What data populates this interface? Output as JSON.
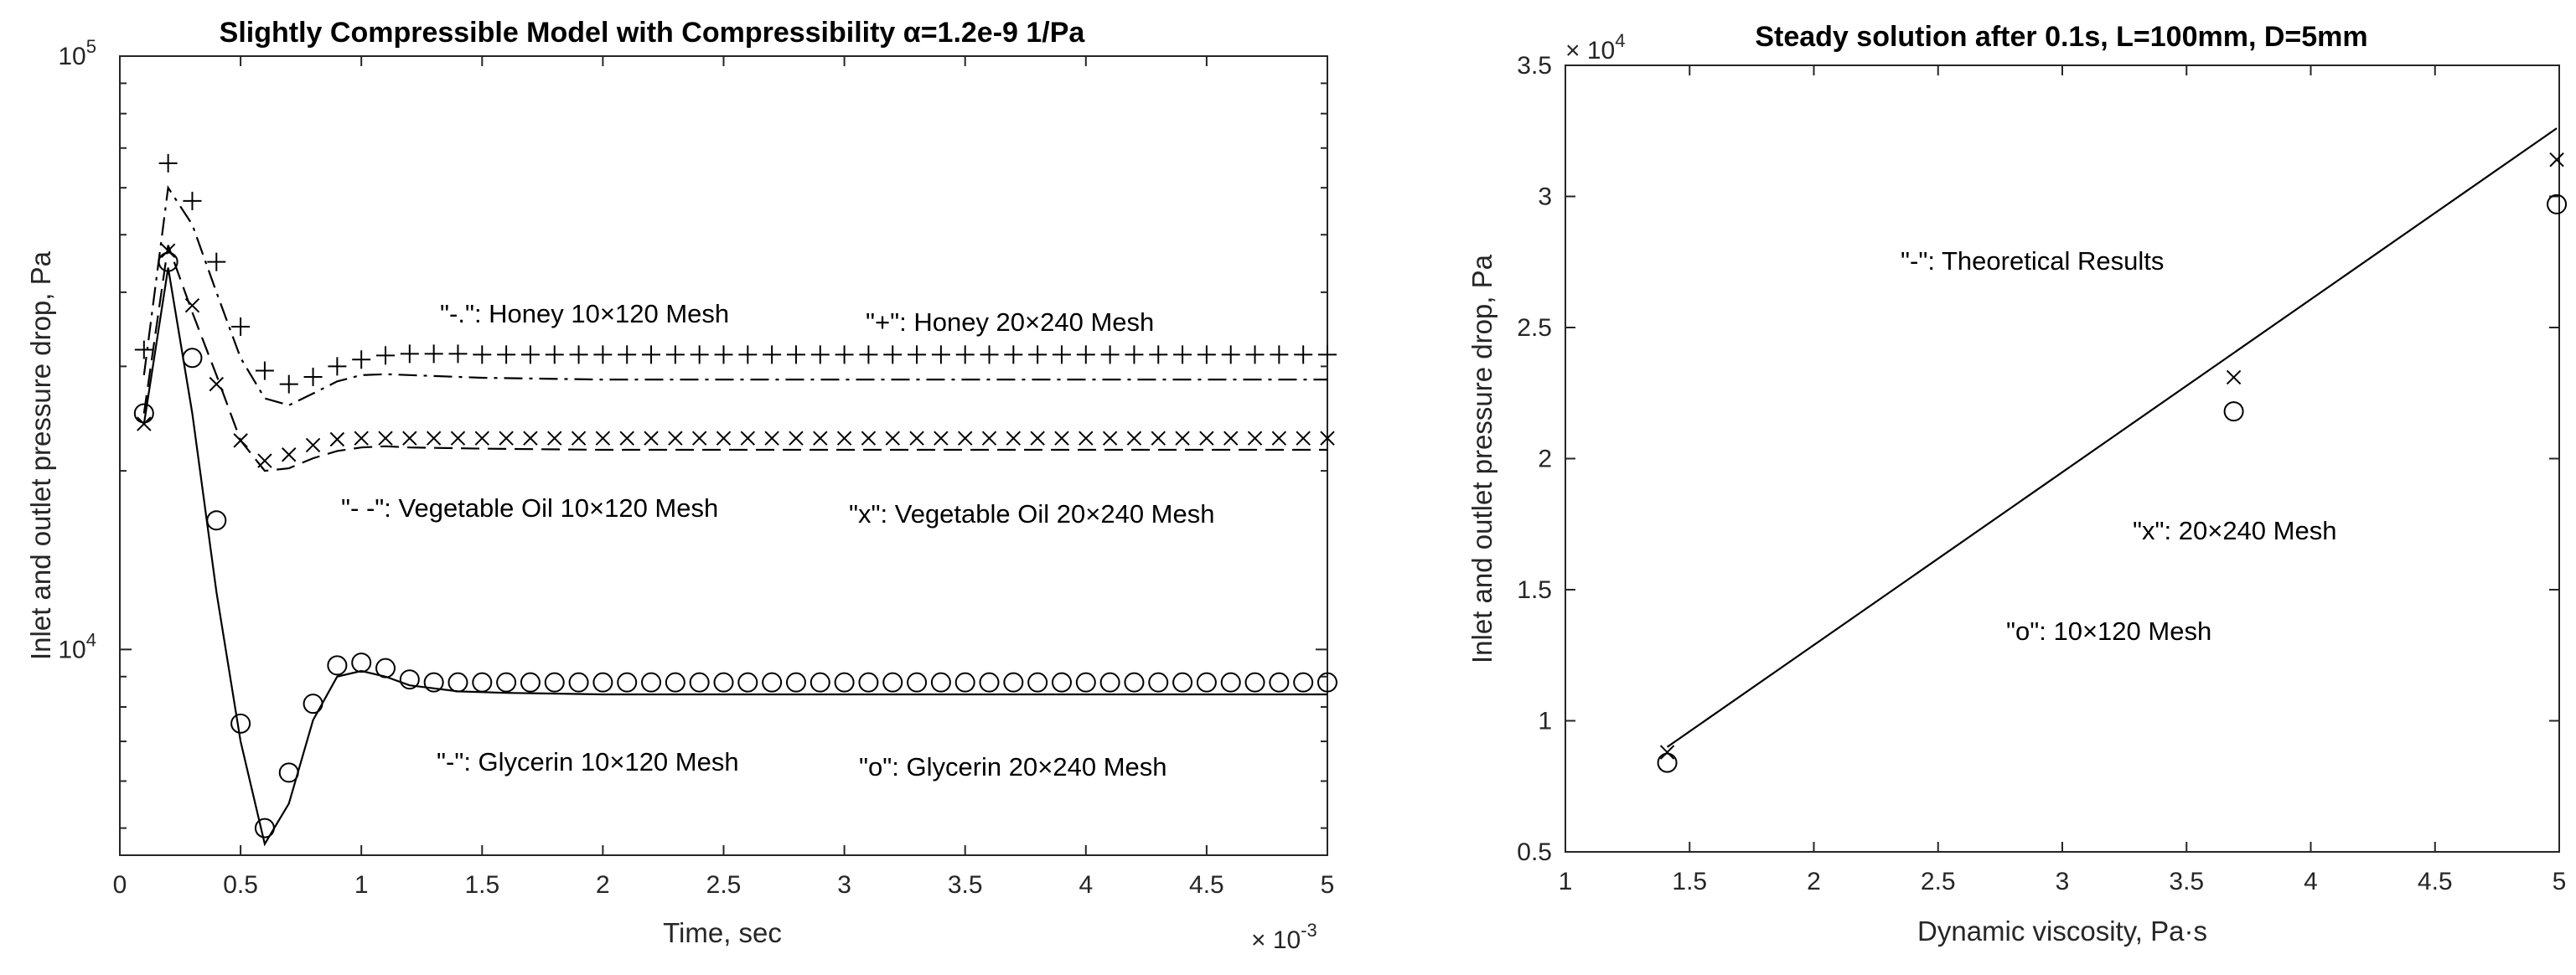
{
  "chart_data": [
    {
      "type": "line",
      "title": "Slightly Compressible Model with Compressibility α=1.2e-9 1/Pa",
      "xlabel": "Time, sec",
      "ylabel": "Inlet and outlet pressure drop, Pa",
      "x_exponent": "× 10-3",
      "y_scale": "log",
      "xlim": [
        0,
        5
      ],
      "ylim": [
        4500,
        100000
      ],
      "x_ticks": [
        "0",
        "0.5",
        "1",
        "1.5",
        "2",
        "2.5",
        "3",
        "3.5",
        "4",
        "4.5",
        "5"
      ],
      "y_ticks": [
        "10^4",
        "10^5"
      ],
      "grid": false,
      "annotations": [
        "\"-.\": Honey 10×120 Mesh",
        "\"+\": Honey 20×240 Mesh",
        "\"- -\": Vegetable Oil 10×120 Mesh",
        "\"x\": Vegetable Oil 20×240 Mesh",
        "\"-\": Glycerin 10×120 Mesh",
        "\"o\": Glycerin 20×240 Mesh"
      ],
      "series": [
        {
          "style": "dashdot",
          "x": [
            0.1,
            0.2,
            0.3,
            0.4,
            0.5,
            0.6,
            0.7,
            0.8,
            0.9,
            1.0,
            1.1,
            1.2,
            1.5,
            2,
            3,
            4,
            5
          ],
          "y": [
            29000,
            60000,
            52000,
            40000,
            31000,
            26500,
            25800,
            27000,
            28300,
            29000,
            29100,
            29000,
            28700,
            28500,
            28500,
            28500,
            28500
          ]
        },
        {
          "style": "plus",
          "x": [
            0.1,
            0.2,
            0.3,
            0.4,
            0.5,
            0.6,
            0.7,
            0.8,
            0.9,
            1.0,
            1.1,
            1.2,
            1.3,
            1.4,
            1.5,
            1.6,
            1.7,
            1.8,
            1.9,
            2.0,
            2.1,
            2.2,
            2.3,
            2.4,
            2.5,
            2.6,
            2.7,
            2.8,
            2.9,
            3.0,
            3.1,
            3.2,
            3.3,
            3.4,
            3.5,
            3.6,
            3.7,
            3.8,
            3.9,
            4.0,
            4.1,
            4.2,
            4.3,
            4.4,
            4.5,
            4.6,
            4.7,
            4.8,
            4.9,
            5.0
          ],
          "y": [
            32000,
            66000,
            57000,
            45000,
            35000,
            29500,
            28000,
            28800,
            30000,
            30800,
            31300,
            31500,
            31500,
            31500,
            31400,
            31400,
            31400,
            31400,
            31400,
            31400,
            31400,
            31400,
            31400,
            31400,
            31400,
            31400,
            31400,
            31400,
            31400,
            31400,
            31400,
            31400,
            31400,
            31400,
            31400,
            31400,
            31400,
            31400,
            31400,
            31400,
            31400,
            31400,
            31400,
            31400,
            31400,
            31400,
            31400,
            31400,
            31400,
            31400
          ]
        },
        {
          "style": "dashed",
          "x": [
            0.1,
            0.2,
            0.3,
            0.4,
            0.5,
            0.6,
            0.7,
            0.8,
            0.9,
            1.0,
            1.1,
            1.2,
            1.5,
            2,
            3,
            4,
            5
          ],
          "y": [
            25000,
            48000,
            37000,
            29000,
            22500,
            20000,
            20200,
            21000,
            21600,
            21900,
            22000,
            21900,
            21800,
            21700,
            21700,
            21700,
            21700
          ]
        },
        {
          "style": "x",
          "x": [
            0.1,
            0.2,
            0.3,
            0.4,
            0.5,
            0.6,
            0.7,
            0.8,
            0.9,
            1.0,
            1.1,
            1.2,
            1.3,
            1.4,
            1.5,
            1.6,
            1.7,
            1.8,
            1.9,
            2.0,
            2.1,
            2.2,
            2.3,
            2.4,
            2.5,
            2.6,
            2.7,
            2.8,
            2.9,
            3.0,
            3.1,
            3.2,
            3.3,
            3.4,
            3.5,
            3.6,
            3.7,
            3.8,
            3.9,
            4.0,
            4.1,
            4.2,
            4.3,
            4.4,
            4.5,
            4.6,
            4.7,
            4.8,
            4.9,
            5.0
          ],
          "y": [
            24000,
            47000,
            38000,
            28000,
            22500,
            20800,
            21300,
            22100,
            22600,
            22700,
            22700,
            22700,
            22700,
            22700,
            22700,
            22700,
            22700,
            22700,
            22700,
            22700,
            22700,
            22700,
            22700,
            22700,
            22700,
            22700,
            22700,
            22700,
            22700,
            22700,
            22700,
            22700,
            22700,
            22700,
            22700,
            22700,
            22700,
            22700,
            22700,
            22700,
            22700,
            22700,
            22700,
            22700,
            22700,
            22700,
            22700,
            22700,
            22700,
            22700
          ]
        },
        {
          "style": "solid",
          "x": [
            0.1,
            0.2,
            0.3,
            0.4,
            0.5,
            0.6,
            0.7,
            0.8,
            0.9,
            1.0,
            1.1,
            1.2,
            1.4,
            1.6,
            2,
            3,
            4,
            5
          ],
          "y": [
            24000,
            44000,
            25000,
            12500,
            7000,
            4700,
            5500,
            7600,
            9000,
            9200,
            9000,
            8700,
            8500,
            8450,
            8400,
            8400,
            8400,
            8400
          ]
        },
        {
          "style": "circle",
          "x": [
            0.1,
            0.2,
            0.3,
            0.4,
            0.5,
            0.6,
            0.7,
            0.8,
            0.9,
            1.0,
            1.1,
            1.2,
            1.3,
            1.4,
            1.5,
            1.6,
            1.7,
            1.8,
            1.9,
            2.0,
            2.1,
            2.2,
            2.3,
            2.4,
            2.5,
            2.6,
            2.7,
            2.8,
            2.9,
            3.0,
            3.1,
            3.2,
            3.3,
            3.4,
            3.5,
            3.6,
            3.7,
            3.8,
            3.9,
            4.0,
            4.1,
            4.2,
            4.3,
            4.4,
            4.5,
            4.6,
            4.7,
            4.8,
            4.9,
            5.0
          ],
          "y": [
            25000,
            45000,
            31000,
            16500,
            7500,
            5000,
            6200,
            8100,
            9400,
            9500,
            9300,
            8900,
            8800,
            8800,
            8800,
            8800,
            8800,
            8800,
            8800,
            8800,
            8800,
            8800,
            8800,
            8800,
            8800,
            8800,
            8800,
            8800,
            8800,
            8800,
            8800,
            8800,
            8800,
            8800,
            8800,
            8800,
            8800,
            8800,
            8800,
            8800,
            8800,
            8800,
            8800,
            8800,
            8800,
            8800,
            8800,
            8800,
            8800,
            8800
          ]
        }
      ]
    },
    {
      "type": "scatter",
      "title": "Steady solution after 0.1s, L=100mm, D=5mm",
      "xlabel": "Dynamic viscosity, Pa·s",
      "ylabel": "Inlet and outlet pressure drop, Pa",
      "y_exponent": "× 10^4",
      "xlim": [
        1,
        5
      ],
      "ylim": [
        0.5,
        3.5
      ],
      "x_ticks": [
        "1",
        "1.5",
        "2",
        "2.5",
        "3",
        "3.5",
        "4",
        "4.5",
        "5"
      ],
      "y_ticks": [
        "0.5",
        "1",
        "1.5",
        "2",
        "2.5",
        "3",
        "3.5"
      ],
      "grid": false,
      "annotations": [
        "\"-\": Theoretical Results",
        "\"x\": 20×240 Mesh",
        "\"o\": 10×120 Mesh"
      ],
      "series": [
        {
          "style": "solid",
          "x": [
            1.41,
            4.99
          ],
          "y": [
            0.9,
            3.26
          ]
        },
        {
          "style": "x",
          "x": [
            1.41,
            3.69,
            4.99
          ],
          "y": [
            0.88,
            2.31,
            3.14
          ]
        },
        {
          "style": "circle",
          "x": [
            1.41,
            3.69,
            4.99
          ],
          "y": [
            0.84,
            2.18,
            2.97
          ]
        }
      ]
    }
  ]
}
